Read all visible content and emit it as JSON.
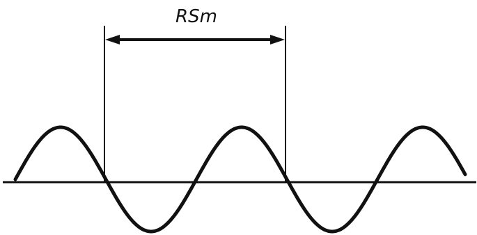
{
  "diagram": {
    "dimension_label": "RSm",
    "colors": {
      "background": "#ffffff",
      "stroke": "#111111"
    }
  }
}
